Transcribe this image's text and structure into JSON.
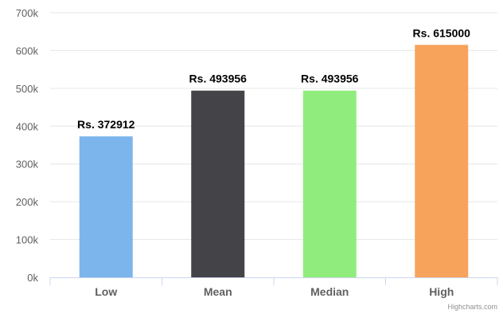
{
  "chart_data": {
    "type": "bar",
    "categories": [
      "Low",
      "Mean",
      "Median",
      "High"
    ],
    "values": [
      372912,
      493956,
      493956,
      615000
    ],
    "data_labels": [
      "Rs. 372912",
      "Rs. 493956",
      "Rs. 493956",
      "Rs. 615000"
    ],
    "colors": [
      "#7cb5ec",
      "#434348",
      "#90ed7d",
      "#f7a35c"
    ],
    "ylim": [
      0,
      700000
    ],
    "y_ticks": [
      0,
      100000,
      200000,
      300000,
      400000,
      500000,
      600000,
      700000
    ],
    "y_tick_labels": [
      "0k",
      "100k",
      "200k",
      "300k",
      "400k",
      "500k",
      "600k",
      "700k"
    ],
    "grid": true,
    "legend": false,
    "title": "",
    "xlabel": "",
    "ylabel": ""
  },
  "credits": "Highcharts.com",
  "colors": {
    "grid": "#e6e6e6",
    "axis": "#ccd6eb",
    "text": "#606060"
  }
}
